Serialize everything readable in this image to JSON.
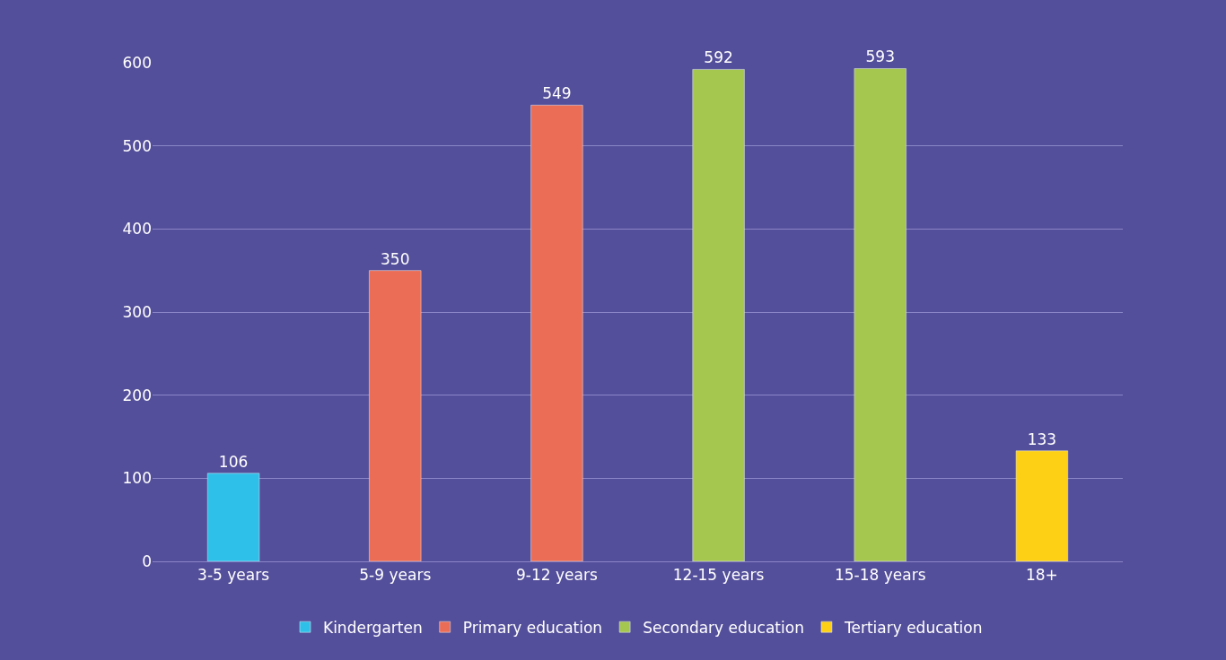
{
  "chart_data": {
    "type": "bar",
    "categories": [
      "3-5 years",
      "5-9 years",
      "9-12 years",
      "12-15 years",
      "15-18 years",
      "18+"
    ],
    "series": [
      {
        "name": "Kindergarten",
        "color": "#2ec0e8",
        "values": [
          106,
          null,
          null,
          null,
          null,
          null
        ]
      },
      {
        "name": "Primary education",
        "color": "#ec6d55",
        "values": [
          null,
          350,
          549,
          null,
          null,
          null
        ]
      },
      {
        "name": "Secondary education",
        "color": "#a5c64f",
        "values": [
          null,
          null,
          null,
          592,
          593,
          null
        ]
      },
      {
        "name": "Tertiary education",
        "color": "#fdd016",
        "values": [
          null,
          null,
          null,
          null,
          null,
          133
        ]
      }
    ],
    "ylim": [
      0,
      600
    ],
    "yticks": [
      0,
      100,
      200,
      300,
      400,
      500,
      600
    ],
    "grid": "y",
    "legend": "bottom",
    "data_labels": true
  }
}
